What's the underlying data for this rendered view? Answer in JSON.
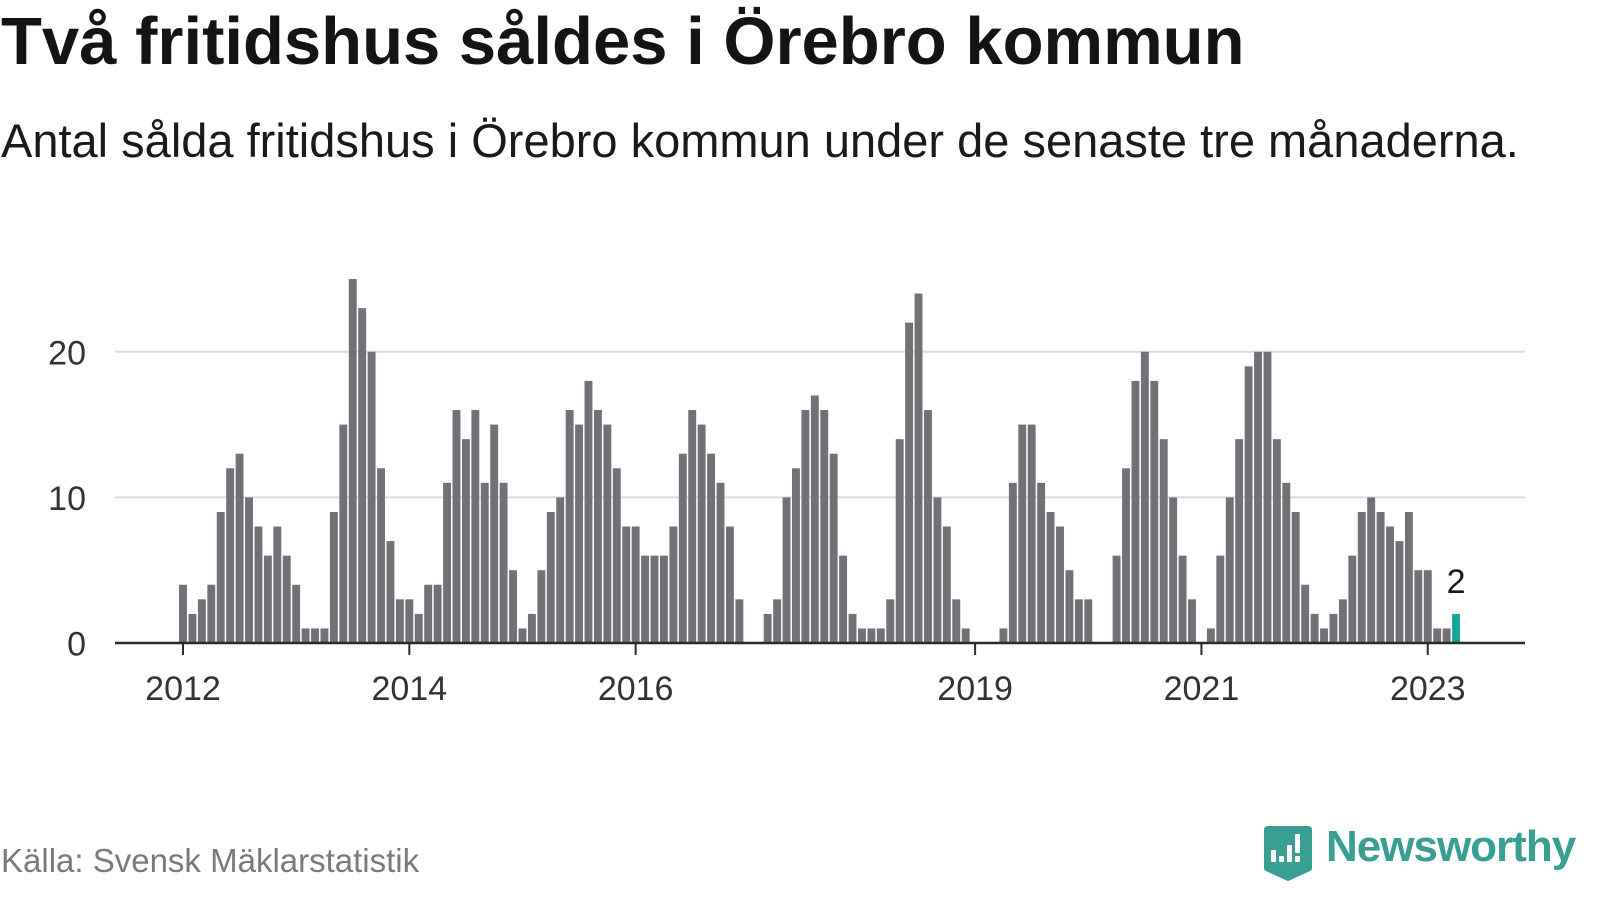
{
  "chart_data": {
    "type": "bar",
    "title": "Två fritidshus såldes i Örebro kommun",
    "subtitle": "Antal sålda fritidshus i Örebro kommun under de senaste tre månaderna.",
    "x": [
      "2012-01",
      "2012-02",
      "2012-03",
      "2012-04",
      "2012-05",
      "2012-06",
      "2012-07",
      "2012-08",
      "2012-09",
      "2012-10",
      "2012-11",
      "2012-12",
      "2013-01",
      "2013-02",
      "2013-03",
      "2013-04",
      "2013-05",
      "2013-06",
      "2013-07",
      "2013-08",
      "2013-09",
      "2013-10",
      "2013-11",
      "2013-12",
      "2014-01",
      "2014-02",
      "2014-03",
      "2014-04",
      "2014-05",
      "2014-06",
      "2014-07",
      "2014-08",
      "2014-09",
      "2014-10",
      "2014-11",
      "2014-12",
      "2015-01",
      "2015-02",
      "2015-03",
      "2015-04",
      "2015-05",
      "2015-06",
      "2015-07",
      "2015-08",
      "2015-09",
      "2015-10",
      "2015-11",
      "2015-12",
      "2016-01",
      "2016-02",
      "2016-03",
      "2016-04",
      "2016-05",
      "2016-06",
      "2016-07",
      "2016-08",
      "2016-09",
      "2016-10",
      "2016-11",
      "2016-12",
      "2017-01",
      "2017-02",
      "2017-03",
      "2017-04",
      "2017-05",
      "2017-06",
      "2017-07",
      "2017-08",
      "2017-09",
      "2017-10",
      "2017-11",
      "2017-12",
      "2018-01",
      "2018-02",
      "2018-03",
      "2018-04",
      "2018-05",
      "2018-06",
      "2018-07",
      "2018-08",
      "2018-09",
      "2018-10",
      "2018-11",
      "2018-12",
      "2019-01",
      "2019-02",
      "2019-03",
      "2019-04",
      "2019-05",
      "2019-06",
      "2019-07",
      "2019-08",
      "2019-09",
      "2019-10",
      "2019-11",
      "2019-12",
      "2020-01",
      "2020-02",
      "2020-03",
      "2020-04",
      "2020-05",
      "2020-06",
      "2020-07",
      "2020-08",
      "2020-09",
      "2020-10",
      "2020-11",
      "2020-12",
      "2021-01",
      "2021-02",
      "2021-03",
      "2021-04",
      "2021-05",
      "2021-06",
      "2021-07",
      "2021-08",
      "2021-09",
      "2021-10",
      "2021-11",
      "2021-12",
      "2022-01",
      "2022-02",
      "2022-03",
      "2022-04",
      "2022-05",
      "2022-06",
      "2022-07",
      "2022-08",
      "2022-09",
      "2022-10",
      "2022-11",
      "2022-12",
      "2023-01",
      "2023-02",
      "2023-03",
      "2023-04"
    ],
    "values": [
      4,
      2,
      3,
      4,
      9,
      12,
      13,
      10,
      8,
      6,
      8,
      6,
      4,
      1,
      1,
      1,
      9,
      15,
      25,
      23,
      20,
      12,
      7,
      3,
      3,
      2,
      4,
      4,
      11,
      16,
      14,
      16,
      11,
      15,
      11,
      5,
      1,
      2,
      5,
      9,
      10,
      16,
      15,
      18,
      16,
      15,
      12,
      8,
      8,
      6,
      6,
      6,
      8,
      13,
      16,
      15,
      13,
      11,
      8,
      3,
      0,
      0,
      2,
      3,
      10,
      12,
      16,
      17,
      16,
      13,
      6,
      2,
      1,
      1,
      1,
      3,
      14,
      22,
      24,
      16,
      10,
      8,
      3,
      1,
      0,
      0,
      0,
      1,
      11,
      15,
      15,
      11,
      9,
      8,
      5,
      3,
      3,
      0,
      0,
      6,
      12,
      18,
      20,
      18,
      14,
      10,
      6,
      3,
      0,
      1,
      6,
      10,
      14,
      19,
      20,
      20,
      14,
      11,
      9,
      4,
      2,
      1,
      2,
      3,
      6,
      9,
      10,
      9,
      8,
      7,
      9,
      5,
      5,
      1,
      1,
      2
    ],
    "ylim": [
      0,
      25
    ],
    "y_ticks": [
      0,
      10,
      20
    ],
    "y_tick_labels": [
      "0",
      "10",
      "20"
    ],
    "x_ticks": [
      "2012-01",
      "2014-01",
      "2016-01",
      "2019-01",
      "2021-01",
      "2023-01"
    ],
    "x_tick_labels": [
      "2012",
      "2014",
      "2016",
      "2019",
      "2021",
      "2023"
    ],
    "grid": true,
    "highlight": {
      "x": "2023-04",
      "label": "2"
    },
    "colors": {
      "bar": "#727177",
      "highlight": "#19a596",
      "grid": "#dcdcdc",
      "axis": "#2b2b2b"
    }
  },
  "footer": {
    "source": "Källa: Svensk Mäklarstatistik",
    "brand": "Newsworthy",
    "brand_icon": "newsworthy-logo-icon",
    "brand_color": "#3a9f93"
  }
}
